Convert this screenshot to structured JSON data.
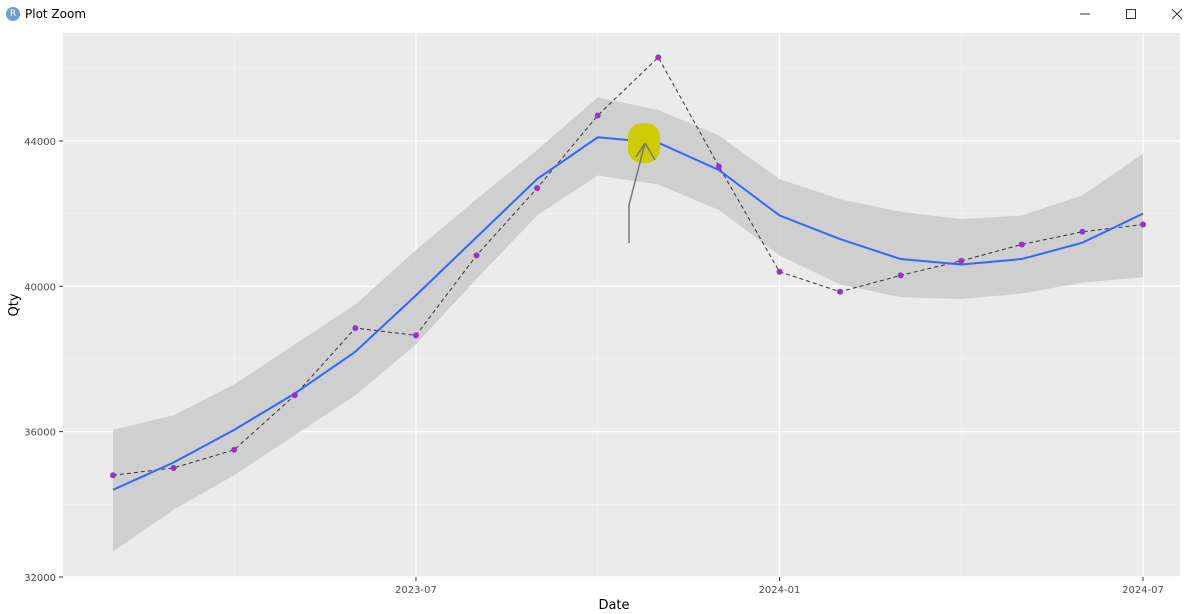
{
  "window": {
    "icon": "R",
    "title": "Plot Zoom"
  },
  "chart_data": {
    "type": "line",
    "x_label": "Date",
    "y_label": "Qty",
    "x": [
      "2023-02",
      "2023-03",
      "2023-04",
      "2023-05",
      "2023-06",
      "2023-07",
      "2023-08",
      "2023-09",
      "2023-10",
      "2023-11",
      "2023-12",
      "2024-01",
      "2024-02",
      "2024-03",
      "2024-04",
      "2024-05",
      "2024-06",
      "2024-07"
    ],
    "observed": {
      "point_color": "#9932cc",
      "line_color": "#333333",
      "values": [
        34800,
        35000,
        35500,
        37000,
        38850,
        38650,
        40850,
        42700,
        44700,
        46300,
        43300,
        40400,
        39850,
        40300,
        40700,
        41150,
        41500,
        41700
      ]
    },
    "smooth": {
      "color": "#3366ff",
      "values": [
        34400,
        35150,
        36050,
        37050,
        38200,
        39750,
        41350,
        42950,
        44100,
        43950,
        43200,
        41950,
        41300,
        40750,
        40600,
        40750,
        41200,
        42000
      ]
    },
    "band": {
      "color": "#cccccc",
      "upper": [
        36050,
        36450,
        37300,
        38400,
        39500,
        41000,
        42400,
        43750,
        45200,
        44850,
        44150,
        42950,
        42400,
        42050,
        41850,
        41950,
        42500,
        43650
      ],
      "lower": [
        32700,
        33850,
        34800,
        35900,
        37000,
        38400,
        40200,
        41950,
        43050,
        42800,
        42100,
        40850,
        40050,
        39700,
        39650,
        39800,
        40100,
        40250
      ]
    },
    "ylim": [
      32000,
      46970
    ],
    "yticks": [
      32000,
      36000,
      40000,
      44000
    ],
    "xticks": [
      "2023-07",
      "2024-01",
      "2024-07"
    ],
    "grid": true
  }
}
